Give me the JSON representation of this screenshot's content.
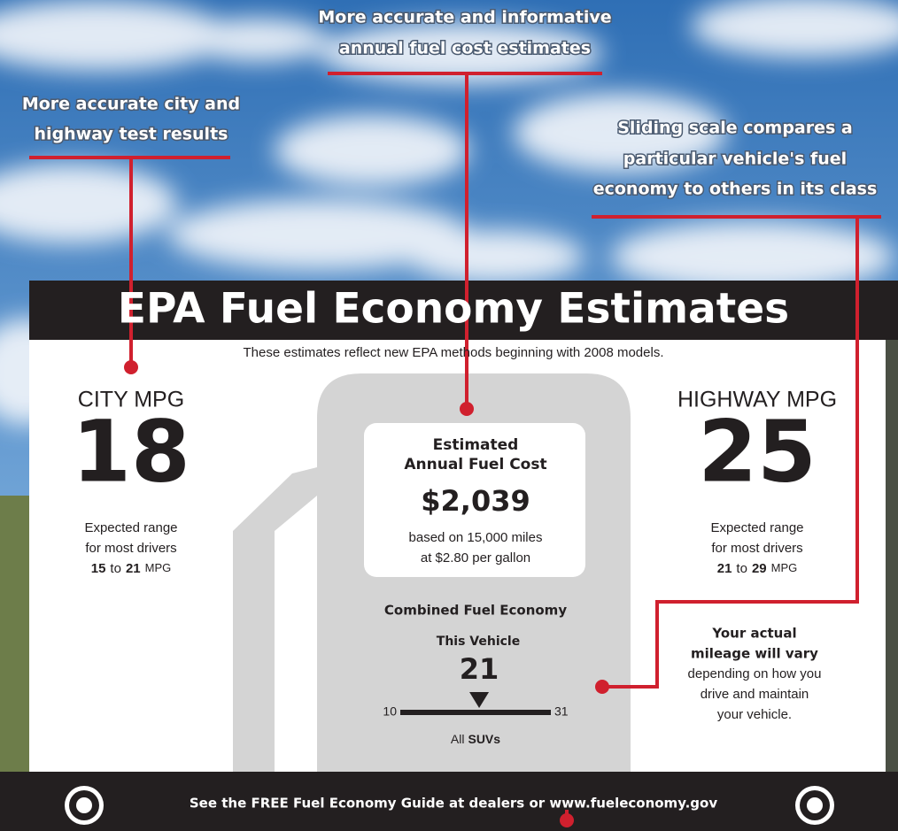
{
  "callouts": [
    {
      "lines": [
        "More accurate and informative",
        "annual fuel cost estimates"
      ]
    },
    {
      "lines": [
        "More accurate city and",
        "highway test results"
      ]
    },
    {
      "lines": [
        "Sliding scale compares a",
        "particular vehicle's fuel",
        "economy to others in its class"
      ]
    }
  ],
  "label": {
    "title": "EPA Fuel Economy Estimates",
    "subtitle": "These estimates reflect new EPA methods beginning with 2008 models.",
    "city": {
      "heading": "CITY MPG",
      "value": 18,
      "range_lines": [
        "Expected range",
        "for most drivers"
      ],
      "low": 15,
      "to": "to",
      "high": 21,
      "unit": "MPG"
    },
    "highway": {
      "heading": "HIGHWAY MPG",
      "value": 25,
      "range_lines": [
        "Expected range",
        "for most drivers"
      ],
      "low": 21,
      "to": "to",
      "high": 29,
      "unit": "MPG"
    },
    "cost": {
      "heading_lines": [
        "Estimated",
        "Annual Fuel Cost"
      ],
      "amount": "$2,039",
      "basis_lines": [
        "based on 15,000 miles",
        "at $2.80 per gallon"
      ]
    },
    "combined": {
      "heading": "Combined Fuel Economy",
      "vehicle_label": "This Vehicle",
      "value": 21,
      "scale_min": 10,
      "scale_max": 31,
      "class_prefix": "All",
      "class": "SUVs"
    },
    "notice": {
      "bold_lines": [
        "Your actual",
        "mileage will vary"
      ],
      "lines": [
        "depending on how you",
        "drive and maintain",
        "your vehicle."
      ]
    },
    "footer": "See the FREE Fuel Economy Guide at dealers or www.fueleconomy.gov"
  }
}
